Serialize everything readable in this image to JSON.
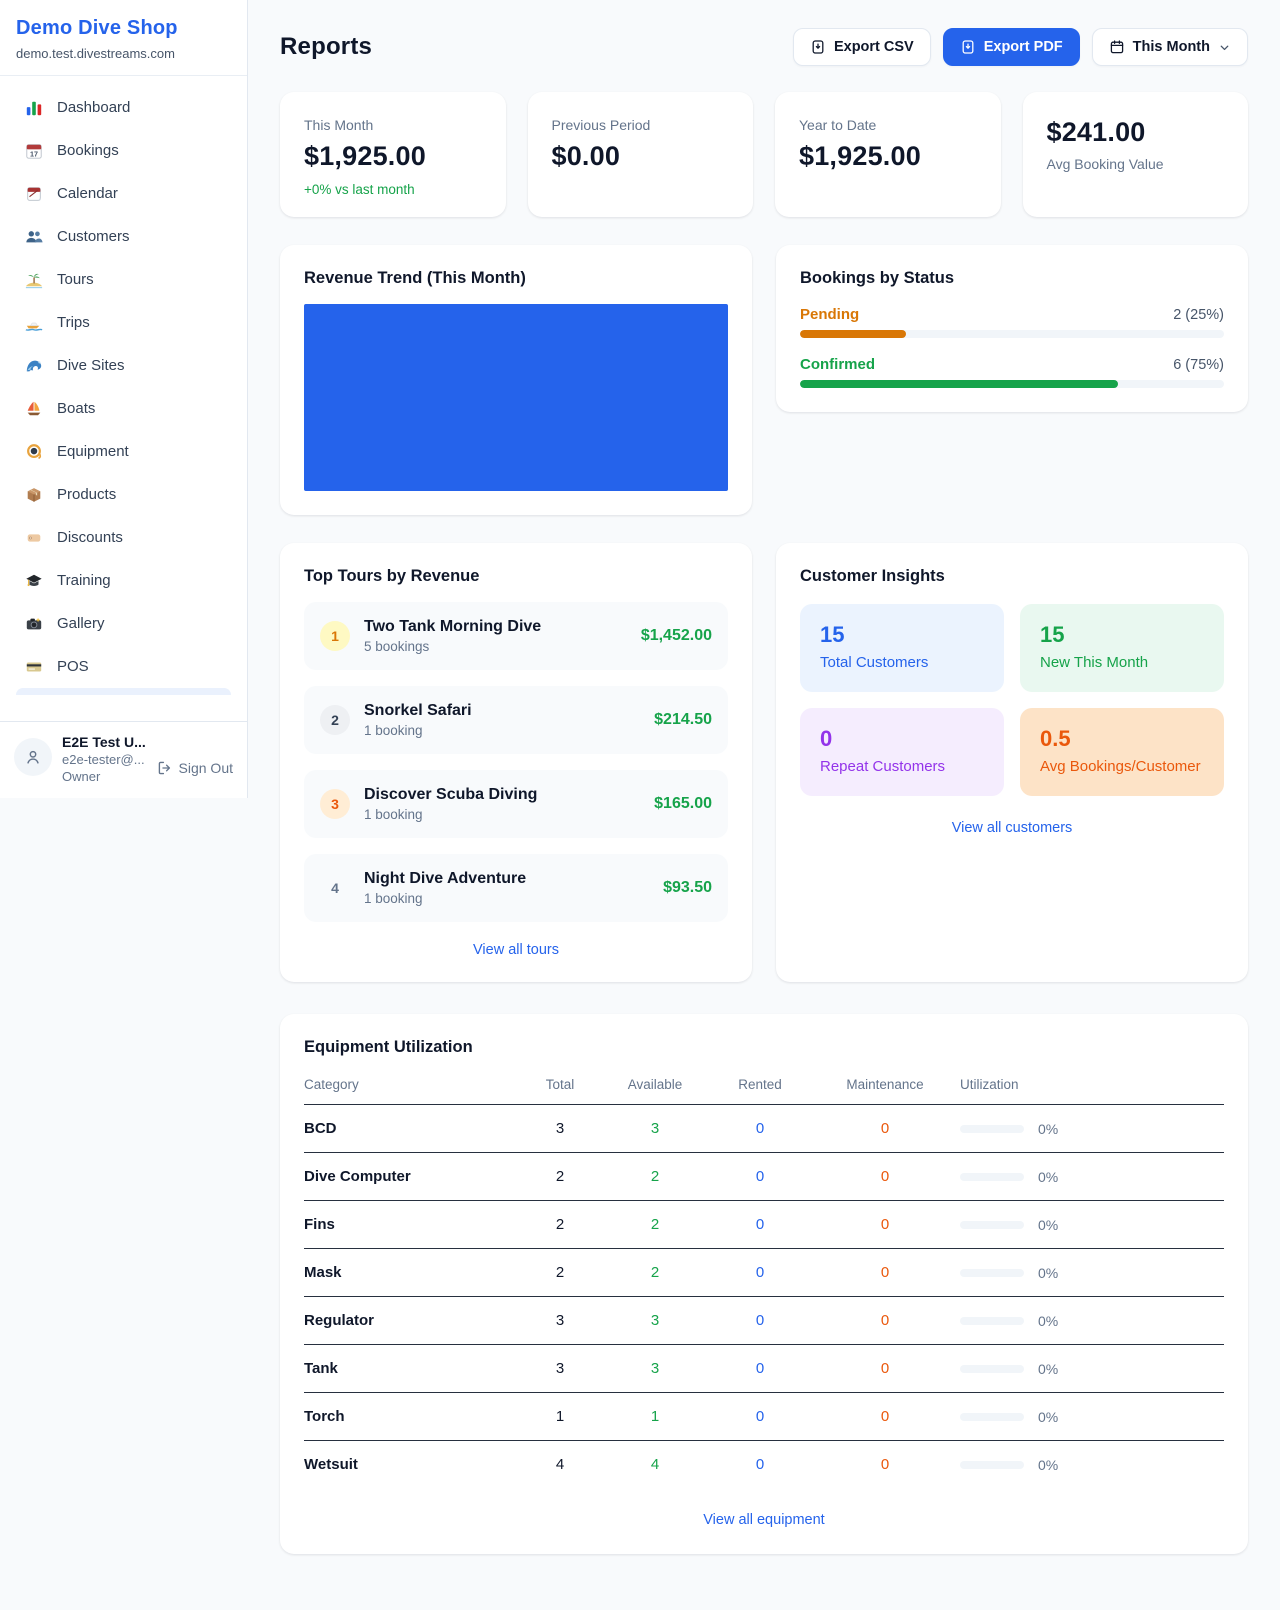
{
  "sidebar": {
    "brand": {
      "name": "Demo Dive Shop",
      "domain": "demo.test.divestreams.com"
    },
    "nav": [
      {
        "label": "Dashboard",
        "icon": "bar-chart-icon"
      },
      {
        "label": "Bookings",
        "icon": "calendar-date-icon"
      },
      {
        "label": "Calendar",
        "icon": "tear-calendar-icon"
      },
      {
        "label": "Customers",
        "icon": "people-icon"
      },
      {
        "label": "Tours",
        "icon": "island-icon"
      },
      {
        "label": "Trips",
        "icon": "speedboat-icon"
      },
      {
        "label": "Dive Sites",
        "icon": "wave-icon"
      },
      {
        "label": "Boats",
        "icon": "sailboat-icon"
      },
      {
        "label": "Equipment",
        "icon": "dive-mask-icon"
      },
      {
        "label": "Products",
        "icon": "package-icon"
      },
      {
        "label": "Discounts",
        "icon": "tag-icon"
      },
      {
        "label": "Training",
        "icon": "graduation-cap-icon"
      },
      {
        "label": "Gallery",
        "icon": "camera-icon"
      },
      {
        "label": "POS",
        "icon": "credit-card-icon"
      }
    ],
    "user": {
      "name": "E2E Test U...",
      "email": "e2e-tester@...",
      "role": "Owner",
      "sign_out_label": "Sign Out"
    }
  },
  "header": {
    "title": "Reports",
    "export_csv_label": "Export CSV",
    "export_pdf_label": "Export PDF",
    "period_label": "This Month"
  },
  "stats": [
    {
      "label": "This Month",
      "value": "$1,925.00",
      "delta": "+0% vs last month"
    },
    {
      "label": "Previous Period",
      "value": "$0.00"
    },
    {
      "label": "Year to Date",
      "value": "$1,925.00"
    },
    {
      "label": "Avg Booking Value",
      "value": "$241.00"
    }
  ],
  "revenue_trend": {
    "title": "Revenue Trend (This Month)"
  },
  "chart_data": {
    "type": "bar",
    "title": "Revenue Trend (This Month)",
    "categories": [
      "This Month"
    ],
    "values": [
      1925
    ],
    "bar_color": "#2563eb",
    "note": "single full-plot-width blue bar, no visible axes, gridlines or tick labels"
  },
  "bookings_by_status": {
    "title": "Bookings by Status",
    "rows": [
      {
        "label": "Pending",
        "value": "2 (25%)",
        "pct": 25,
        "color": "#d97706"
      },
      {
        "label": "Confirmed",
        "value": "6 (75%)",
        "pct": 75,
        "color": "#16a34a"
      }
    ]
  },
  "top_tours": {
    "title": "Top Tours by Revenue",
    "items": [
      {
        "rank": "1",
        "name": "Two Tank Morning Dive",
        "bookings": "5 bookings",
        "revenue": "$1,452.00"
      },
      {
        "rank": "2",
        "name": "Snorkel Safari",
        "bookings": "1 booking",
        "revenue": "$214.50"
      },
      {
        "rank": "3",
        "name": "Discover Scuba Diving",
        "bookings": "1 booking",
        "revenue": "$165.00"
      },
      {
        "rank": "4",
        "name": "Night Dive Adventure",
        "bookings": "1 booking",
        "revenue": "$93.50"
      }
    ],
    "link_label": "View all tours"
  },
  "customer_insights": {
    "title": "Customer Insights",
    "tiles": [
      {
        "value": "15",
        "label": "Total Customers",
        "color": "#2563eb"
      },
      {
        "value": "15",
        "label": "New This Month",
        "color": "#16a34a"
      },
      {
        "value": "0",
        "label": "Repeat Customers",
        "color": "#9333ea"
      },
      {
        "value": "0.5",
        "label": "Avg Bookings/Customer",
        "color": "#ea580c"
      }
    ],
    "link_label": "View all customers"
  },
  "equipment": {
    "title": "Equipment Utilization",
    "columns": [
      "Category",
      "Total",
      "Available",
      "Rented",
      "Maintenance",
      "Utilization"
    ],
    "rows": [
      {
        "category": "BCD",
        "total": "3",
        "available": "3",
        "rented": "0",
        "maintenance": "0",
        "utilization": "0%",
        "util_pct": 0
      },
      {
        "category": "Dive Computer",
        "total": "2",
        "available": "2",
        "rented": "0",
        "maintenance": "0",
        "utilization": "0%",
        "util_pct": 0
      },
      {
        "category": "Fins",
        "total": "2",
        "available": "2",
        "rented": "0",
        "maintenance": "0",
        "utilization": "0%",
        "util_pct": 0
      },
      {
        "category": "Mask",
        "total": "2",
        "available": "2",
        "rented": "0",
        "maintenance": "0",
        "utilization": "0%",
        "util_pct": 0
      },
      {
        "category": "Regulator",
        "total": "3",
        "available": "3",
        "rented": "0",
        "maintenance": "0",
        "utilization": "0%",
        "util_pct": 0
      },
      {
        "category": "Tank",
        "total": "3",
        "available": "3",
        "rented": "0",
        "maintenance": "0",
        "utilization": "0%",
        "util_pct": 0
      },
      {
        "category": "Torch",
        "total": "1",
        "available": "1",
        "rented": "0",
        "maintenance": "0",
        "utilization": "0%",
        "util_pct": 0
      },
      {
        "category": "Wetsuit",
        "total": "4",
        "available": "4",
        "rented": "0",
        "maintenance": "0",
        "utilization": "0%",
        "util_pct": 0
      }
    ],
    "link_label": "View all equipment"
  },
  "colors": {
    "accent_blue": "#2563eb",
    "green": "#16a34a",
    "orange": "#d97706",
    "deep_orange": "#ea580c",
    "purple": "#9333ea"
  }
}
